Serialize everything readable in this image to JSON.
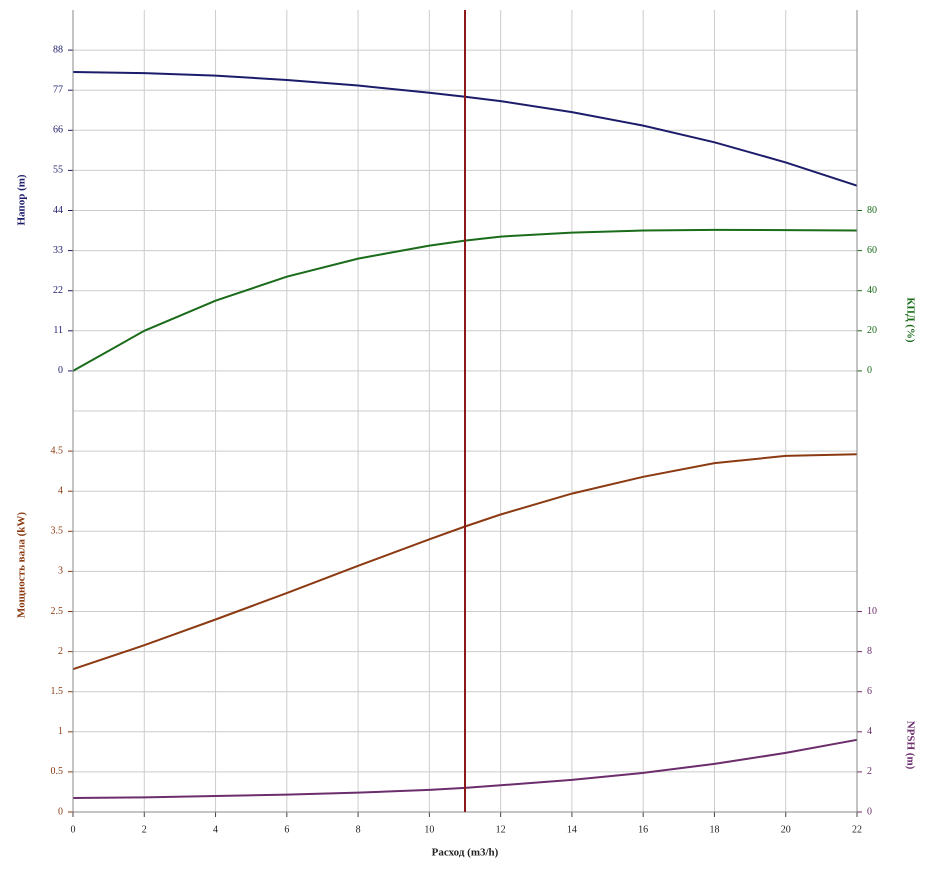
{
  "chart_data": [
    {
      "type": "line",
      "ylabel": "Напор (m)",
      "y2label": "КПД (%)",
      "x": [
        0,
        2,
        4,
        6,
        8,
        10,
        11,
        12,
        14,
        16,
        18,
        20,
        22
      ],
      "xlim": [
        0,
        22
      ],
      "ylim": [
        -11,
        99
      ],
      "yticks": [
        0,
        11,
        22,
        33,
        44,
        55,
        66,
        77,
        88
      ],
      "y2lim": [
        -20,
        180
      ],
      "y2ticks": [
        0,
        20,
        40,
        60,
        80
      ],
      "grid": true,
      "series": [
        {
          "name": "Напор",
          "color": "#1c1c6b",
          "axis": "y",
          "values": [
            82,
            81.7,
            81,
            79.8,
            78.3,
            76.3,
            75.2,
            74,
            71,
            67.3,
            62.7,
            57.2,
            50.8
          ]
        },
        {
          "name": "КПД",
          "color": "#1a6b1a",
          "axis": "y2",
          "values": [
            0,
            20,
            35,
            47,
            56,
            62.5,
            65,
            67,
            69,
            70,
            70.3,
            70.2,
            70
          ]
        }
      ]
    },
    {
      "type": "line",
      "ylabel": "Мощность вала (kW)",
      "y2label": "NPSH (m)",
      "xlabel": "Расход (m3/h)",
      "x": [
        0,
        2,
        4,
        6,
        8,
        10,
        11,
        12,
        14,
        16,
        18,
        20,
        22
      ],
      "xlim": [
        0,
        22
      ],
      "xticks": [
        0,
        2,
        4,
        6,
        8,
        10,
        12,
        14,
        16,
        18,
        20,
        22
      ],
      "ylim": [
        0,
        5
      ],
      "yticks": [
        0,
        0.5,
        1,
        1.5,
        2,
        2.5,
        3,
        3.5,
        4,
        4.5
      ],
      "y2lim": [
        0,
        20
      ],
      "y2ticks": [
        0,
        2,
        4,
        6,
        8,
        10
      ],
      "grid": true,
      "vline": 11,
      "vline_color": "#8b1a1a",
      "series": [
        {
          "name": "Мощность вала",
          "color": "#8b3a12",
          "axis": "y",
          "values": [
            1.78,
            2.08,
            2.4,
            2.73,
            3.07,
            3.4,
            3.56,
            3.71,
            3.97,
            4.18,
            4.35,
            4.44,
            4.46
          ]
        },
        {
          "name": "NPSH",
          "color": "#6b2d6b",
          "axis": "y2",
          "values": [
            0.7,
            0.73,
            0.8,
            0.87,
            0.97,
            1.1,
            1.2,
            1.33,
            1.6,
            1.95,
            2.4,
            2.95,
            3.6
          ]
        }
      ]
    }
  ]
}
